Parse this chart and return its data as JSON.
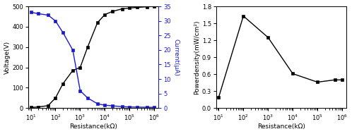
{
  "left": {
    "resistance": [
      10,
      20,
      50,
      100,
      200,
      500,
      1000,
      2000,
      5000,
      10000,
      20000,
      50000,
      100000,
      200000,
      500000,
      1000000
    ],
    "voltage": [
      3,
      6,
      12,
      50,
      120,
      185,
      200,
      300,
      420,
      460,
      475,
      488,
      492,
      495,
      498,
      500
    ],
    "current": [
      33,
      32.5,
      32,
      30,
      26,
      20,
      6,
      3.5,
      1.5,
      1.0,
      0.8,
      0.5,
      0.4,
      0.35,
      0.3,
      0.28
    ],
    "voltage_color": "#000000",
    "current_color": "#1a1acc",
    "xlabel": "Resistance(kΩ)",
    "ylabel_left": "Voltage(V)",
    "ylabel_right": "Current(μA)",
    "ylim_left": [
      0,
      500
    ],
    "ylim_right": [
      0,
      35
    ],
    "yticks_left": [
      0,
      100,
      200,
      300,
      400,
      500
    ],
    "yticks_right": [
      0,
      5,
      10,
      15,
      20,
      25,
      30,
      35
    ]
  },
  "right": {
    "resistance": [
      10,
      100,
      1000,
      10000,
      100000,
      500000,
      1000000
    ],
    "power_density": [
      0.19,
      1.63,
      1.25,
      0.61,
      0.46,
      0.5,
      0.5
    ],
    "color": "#000000",
    "xlabel": "Resistance(kΩ)",
    "ylabel": "Powerdensity(mW/cm²)",
    "ylim": [
      0.0,
      1.8
    ],
    "yticks": [
      0.0,
      0.3,
      0.6,
      0.9,
      1.2,
      1.5,
      1.8
    ]
  },
  "xticks": [
    10,
    100,
    1000,
    10000,
    100000,
    1000000
  ],
  "xlim": [
    8,
    1500000
  ],
  "bg_color": "#ffffff"
}
